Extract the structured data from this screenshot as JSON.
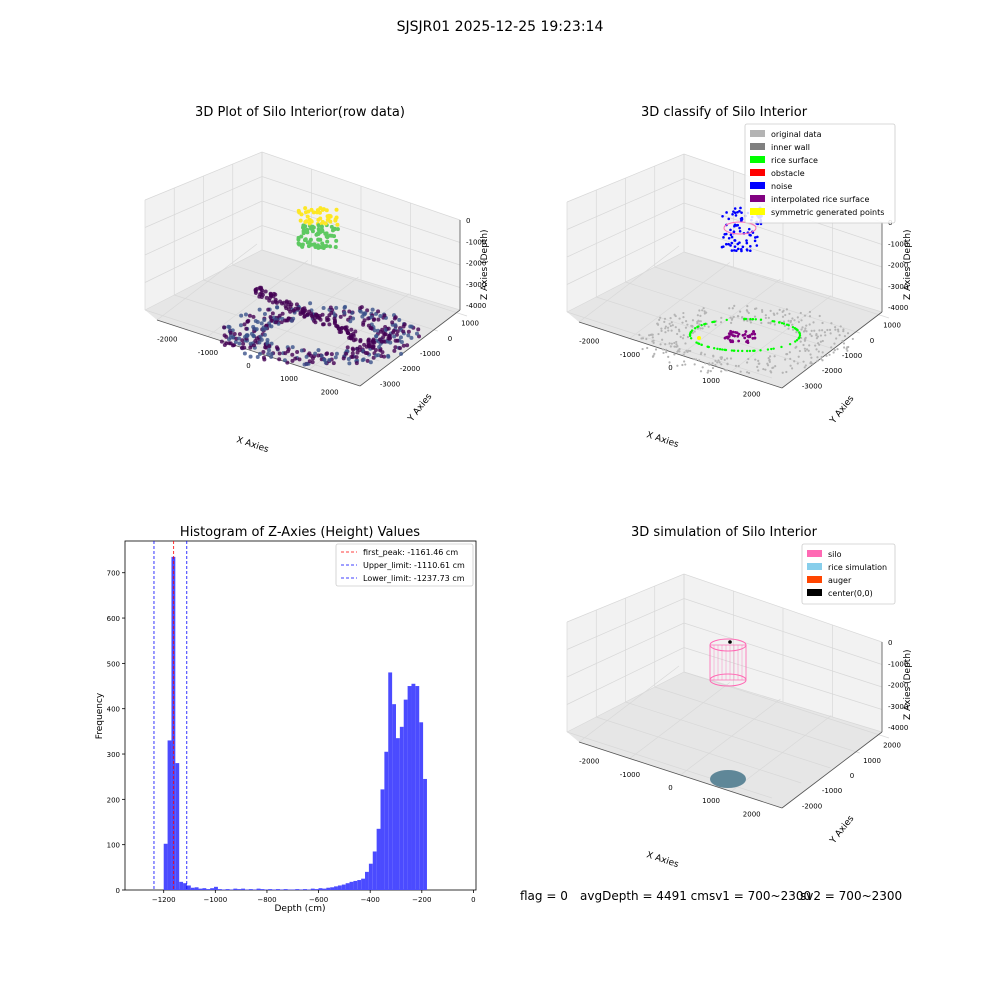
{
  "figure": {
    "suptitle": "SJSJR01 2025-12-25 19:23:14",
    "footer": {
      "flag": "flag = 0",
      "avg_depth": "avgDepth = 4491 cmsv1 = 700~2300",
      "sv2": "sv2 = 700~2300"
    }
  },
  "chart_data": [
    {
      "id": "raw3d",
      "type": "scatter",
      "title": "3D Plot of Silo Interior(row data)",
      "xlabel": "X Axies",
      "ylabel": "Y Axies",
      "zlabel": "Z Axies (Depth)",
      "x_ticks": [
        "-2000",
        "-1000",
        "0",
        "1000",
        "2000"
      ],
      "y_ticks": [
        "-3000",
        "-2000",
        "-1000",
        "0",
        "1000"
      ],
      "z_ticks": [
        "0",
        "-1000",
        "-2000",
        "-3000",
        "-4000"
      ],
      "colormap": [
        "#440154",
        "#3b528b",
        "#21918c",
        "#5ec962",
        "#fde725"
      ]
    },
    {
      "id": "classify3d",
      "type": "scatter",
      "title": "3D classify of Silo Interior",
      "xlabel": "X Axies",
      "ylabel": "Y Axies",
      "zlabel": "Z Axies (Depth)",
      "x_ticks": [
        "-2000",
        "-1000",
        "0",
        "1000",
        "2000"
      ],
      "y_ticks": [
        "-3000",
        "-2000",
        "-1000",
        "0",
        "1000"
      ],
      "z_ticks": [
        "0",
        "-1000",
        "-2000",
        "-3000",
        "-4000"
      ],
      "legend_position": "top-right",
      "legend": [
        {
          "label": "original data",
          "color": "#b4b4b4"
        },
        {
          "label": "inner wall",
          "color": "#808080"
        },
        {
          "label": "rice surface",
          "color": "#00ff00"
        },
        {
          "label": "obstacle",
          "color": "#ff0000"
        },
        {
          "label": "noise",
          "color": "#0000ff"
        },
        {
          "label": "interpolated rice surface",
          "color": "#800080"
        },
        {
          "label": "symmetric generated points",
          "color": "#ffff00"
        }
      ]
    },
    {
      "id": "histogram",
      "type": "bar",
      "title": "Histogram of Z-Axies (Height) Values",
      "xlabel": "Depth (cm)",
      "ylabel": "Frequency",
      "xlim": [
        -1350,
        10
      ],
      "ylim": [
        0,
        770
      ],
      "x_ticks": [
        -1200,
        -1000,
        -800,
        -600,
        -400,
        -200,
        0
      ],
      "x_tick_labels": [
        "−1200",
        "−1000",
        "−800",
        "−600",
        "−400",
        "−200",
        "0"
      ],
      "y_ticks": [
        0,
        100,
        200,
        300,
        400,
        500,
        600,
        700
      ],
      "bar_color": "#4b4bff",
      "bin_width": 15,
      "bins": [
        {
          "left": -1200,
          "count": 102
        },
        {
          "left": -1185,
          "count": 330
        },
        {
          "left": -1170,
          "count": 735
        },
        {
          "left": -1155,
          "count": 280
        },
        {
          "left": -1140,
          "count": 18
        },
        {
          "left": -1125,
          "count": 15
        },
        {
          "left": -1110,
          "count": 10
        },
        {
          "left": -1095,
          "count": 5
        },
        {
          "left": -1080,
          "count": 6
        },
        {
          "left": -1065,
          "count": 3
        },
        {
          "left": -1050,
          "count": 4
        },
        {
          "left": -1035,
          "count": 2
        },
        {
          "left": -1020,
          "count": 4
        },
        {
          "left": -1005,
          "count": 7
        },
        {
          "left": -990,
          "count": 2
        },
        {
          "left": -975,
          "count": 1
        },
        {
          "left": -960,
          "count": 2
        },
        {
          "left": -945,
          "count": 1
        },
        {
          "left": -930,
          "count": 3
        },
        {
          "left": -915,
          "count": 2
        },
        {
          "left": -900,
          "count": 3
        },
        {
          "left": -885,
          "count": 1
        },
        {
          "left": -870,
          "count": 2
        },
        {
          "left": -855,
          "count": 1
        },
        {
          "left": -840,
          "count": 3
        },
        {
          "left": -825,
          "count": 2
        },
        {
          "left": -810,
          "count": 1
        },
        {
          "left": -795,
          "count": 2
        },
        {
          "left": -780,
          "count": 1
        },
        {
          "left": -765,
          "count": 2
        },
        {
          "left": -750,
          "count": 1
        },
        {
          "left": -735,
          "count": 2
        },
        {
          "left": -720,
          "count": 1
        },
        {
          "left": -705,
          "count": 1
        },
        {
          "left": -690,
          "count": 2
        },
        {
          "left": -675,
          "count": 1
        },
        {
          "left": -660,
          "count": 2
        },
        {
          "left": -645,
          "count": 1
        },
        {
          "left": -630,
          "count": 3
        },
        {
          "left": -615,
          "count": 2
        },
        {
          "left": -600,
          "count": 4
        },
        {
          "left": -585,
          "count": 3
        },
        {
          "left": -570,
          "count": 5
        },
        {
          "left": -555,
          "count": 6
        },
        {
          "left": -540,
          "count": 8
        },
        {
          "left": -525,
          "count": 10
        },
        {
          "left": -510,
          "count": 12
        },
        {
          "left": -495,
          "count": 15
        },
        {
          "left": -480,
          "count": 18
        },
        {
          "left": -465,
          "count": 20
        },
        {
          "left": -450,
          "count": 22
        },
        {
          "left": -435,
          "count": 25
        },
        {
          "left": -420,
          "count": 40
        },
        {
          "left": -405,
          "count": 58
        },
        {
          "left": -390,
          "count": 85
        },
        {
          "left": -375,
          "count": 135
        },
        {
          "left": -360,
          "count": 222
        },
        {
          "left": -345,
          "count": 305
        },
        {
          "left": -330,
          "count": 480
        },
        {
          "left": -315,
          "count": 410
        },
        {
          "left": -300,
          "count": 335
        },
        {
          "left": -285,
          "count": 360
        },
        {
          "left": -270,
          "count": 420
        },
        {
          "left": -255,
          "count": 450
        },
        {
          "left": -240,
          "count": 455
        },
        {
          "left": -225,
          "count": 450
        },
        {
          "left": -210,
          "count": 370
        },
        {
          "left": -195,
          "count": 245
        }
      ],
      "vlines": [
        {
          "x": -1161.46,
          "color": "#ff0000",
          "label": "first_peak: -1161.46 cm"
        },
        {
          "x": -1110.61,
          "color": "#0000ff",
          "label": "Upper_limit: -1110.61 cm"
        },
        {
          "x": -1237.73,
          "color": "#0000ff",
          "label": "Lower_limit: -1237.73 cm"
        }
      ],
      "legend_position": "top-right"
    },
    {
      "id": "simulation3d",
      "type": "scatter",
      "title": "3D simulation of Silo Interior",
      "xlabel": "X Axies",
      "ylabel": "Y Axies",
      "zlabel": "Z Axies (Depth)",
      "x_ticks": [
        "-2000",
        "-1000",
        "0",
        "1000",
        "2000"
      ],
      "y_ticks": [
        "-2000",
        "-1000",
        "0",
        "1000",
        "2000"
      ],
      "z_ticks": [
        "0",
        "-1000",
        "-2000",
        "-3000",
        "-4000"
      ],
      "legend_position": "top-right",
      "legend": [
        {
          "label": "silo",
          "color": "#ff69b4"
        },
        {
          "label": "rice simulation",
          "color": "#87ceeb"
        },
        {
          "label": "auger",
          "color": "#ff4500"
        },
        {
          "label": "center(0,0)",
          "color": "#000000"
        }
      ]
    }
  ]
}
